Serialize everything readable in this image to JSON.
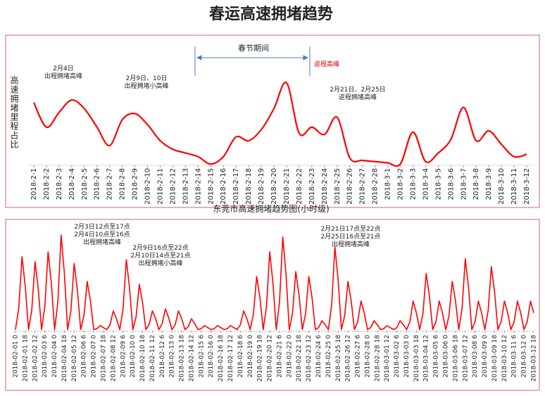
{
  "title": "春运高速拥堵趋势",
  "chart_data": [
    {
      "type": "line",
      "y_label": "高速拥堵里程占比",
      "color": "#ff0000",
      "ylim": [
        0,
        100
      ],
      "categories": [
        "2018-2-1",
        "2018-2-2",
        "2018-2-3",
        "2018-2-4",
        "2018-2-5",
        "2018-2-6",
        "2018-2-7",
        "2018-2-8",
        "2018-2-9",
        "2018-2-10",
        "2018-2-11",
        "2018-2-12",
        "2018-2-13",
        "2018-2-14",
        "2018-2-15",
        "2018-2-16",
        "2018-2-17",
        "2018-2-18",
        "2018-2-19",
        "2018-2-20",
        "2018-2-21",
        "2018-2-22",
        "2018-2-23",
        "2018-2-24",
        "2018-2-25",
        "2018-2-26",
        "2018-2-27",
        "2018-2-28",
        "2018-3-1",
        "2018-3-2",
        "2018-3-3",
        "2018-3-4",
        "2018-3-5",
        "2018-3-6",
        "2018-3-7",
        "2018-3-8",
        "2018-3-9",
        "2018-3-10",
        "2018-3-11",
        "2018-3-12"
      ],
      "values": [
        51,
        31,
        43,
        53,
        46,
        31,
        16,
        37,
        42,
        33,
        20,
        13,
        10,
        7,
        1,
        7,
        23,
        20,
        29,
        46,
        67,
        26,
        31,
        25,
        39,
        6,
        4,
        3,
        2,
        1,
        27,
        3,
        10,
        21,
        47,
        20,
        28,
        17,
        7,
        9
      ],
      "annotations": [
        {
          "lines": [
            "2月4日",
            "出程拥堵高峰"
          ]
        },
        {
          "lines": [
            "2月9日、10日",
            "出程拥堵小高峰"
          ]
        },
        {
          "lines": [
            "春节期间"
          ]
        },
        {
          "lines": [
            "返程高峰"
          ],
          "color": "#e00000"
        },
        {
          "lines": [
            "2月21日、2月25日",
            "返程拥堵高峰"
          ]
        }
      ]
    },
    {
      "type": "line",
      "title": "东莞市高速拥堵趋势图(小时级)",
      "color": "#ff0000",
      "ylim": [
        0,
        100
      ],
      "categories": [
        "2018-02-01 0",
        null,
        null,
        "2018-02-01 18",
        null,
        null,
        "2018-02-02 12",
        null,
        null,
        "2018-02-03 6",
        null,
        null,
        "2018-02-04 0",
        null,
        null,
        "2018-02-04 18",
        null,
        null,
        "2018-02-05 12",
        null,
        null,
        "2018-02-06 6",
        null,
        null,
        "2018-02-07 0",
        null,
        null,
        "2018-02-07 18",
        null,
        null,
        "2018-02-08 12",
        null,
        null,
        "2018-02-09 6",
        null,
        null,
        "2018-02-10 0",
        null,
        null,
        "2018-02-10 18",
        null,
        null,
        "2018-02-11 12",
        null,
        null,
        "2018-02-12 6",
        null,
        null,
        "2018-02-13 0",
        null,
        null,
        "2018-02-13 18",
        null,
        null,
        "2018-02-14 12",
        null,
        null,
        "2018-02-15 6",
        null,
        null,
        "2018-02-16 0",
        null,
        null,
        "2018-02-16 18",
        null,
        null,
        "2018-02-17 12",
        null,
        null,
        "2018-02-18 6",
        null,
        null,
        "2018-02-19 0",
        null,
        null,
        "2018-02-19 18",
        null,
        null,
        "2018-02-20 12",
        null,
        null,
        "2018-02-21 6",
        null,
        null,
        "2018-02-22 0",
        null,
        null,
        "2018-02-22 18",
        null,
        null,
        "2018-02-23 12",
        null,
        null,
        "2018-02-24 6",
        null,
        null,
        "2018-02-25 0",
        null,
        null,
        "2018-02-25 18",
        null,
        null,
        "2018-02-26 12",
        null,
        null,
        "2018-02-27 6",
        null,
        null,
        "2018-02-28 0",
        null,
        null,
        "2018-02-28 18",
        null,
        null,
        "2018-03-01 12",
        null,
        null,
        "2018-03-02 6",
        null,
        null,
        "2018-03-03 0",
        null,
        null,
        "2018-03-03 18",
        null,
        null,
        "2018-03-04 12",
        null,
        null,
        "2018-03-05 6",
        null,
        null,
        "2018-03-06 0",
        null,
        null,
        "2018-03-06 18",
        null,
        null,
        "2018-03-07 12",
        null,
        null,
        "2018-03-08 6",
        null,
        null,
        "2018-03-09 0",
        null,
        null,
        "2018-03-09 18",
        null,
        null,
        "2018-03-10 12",
        null,
        null,
        "2018-03-11 6",
        null,
        null,
        "2018-03-12 0",
        null,
        null,
        "2018-03-12 18"
      ],
      "values": [
        1,
        23,
        75,
        45,
        1,
        21,
        70,
        42,
        1,
        24,
        80,
        48,
        1,
        29,
        97,
        58,
        1,
        20,
        68,
        41,
        1,
        15,
        50,
        30,
        1,
        2,
        5,
        3,
        1,
        6,
        20,
        12,
        1,
        22,
        72,
        43,
        1,
        14,
        47,
        28,
        1,
        6,
        20,
        12,
        1,
        7,
        22,
        13,
        1,
        6,
        20,
        12,
        1,
        4,
        12,
        7,
        1,
        2,
        5,
        3,
        1,
        2,
        5,
        3,
        1,
        2,
        5,
        3,
        1,
        6,
        20,
        12,
        1,
        17,
        55,
        33,
        1,
        24,
        80,
        48,
        1,
        29,
        95,
        57,
        1,
        18,
        60,
        36,
        1,
        17,
        55,
        33,
        1,
        3,
        10,
        6,
        1,
        26,
        85,
        51,
        1,
        15,
        50,
        30,
        1,
        9,
        30,
        18,
        1,
        3,
        10,
        6,
        1,
        2,
        5,
        3,
        1,
        3,
        10,
        6,
        1,
        9,
        30,
        18,
        1,
        17,
        58,
        35,
        1,
        9,
        30,
        18,
        1,
        15,
        50,
        30,
        1,
        22,
        73,
        44,
        1,
        9,
        30,
        18,
        1,
        20,
        65,
        39,
        1,
        9,
        30,
        18,
        1,
        9,
        30,
        18,
        1,
        9,
        30,
        18
      ],
      "annotations": [
        {
          "lines": [
            "2月3日12点至17点",
            "2月4日10点至16点",
            "出程拥堵高峰"
          ]
        },
        {
          "lines": [
            "2月9日16点至22点",
            "2月10日14点至21点",
            "出程拥堵小高峰"
          ]
        },
        {
          "lines": [
            "2月21日17点至22点",
            "2月25日16点至21点",
            "出程拥堵高峰"
          ]
        }
      ]
    }
  ]
}
